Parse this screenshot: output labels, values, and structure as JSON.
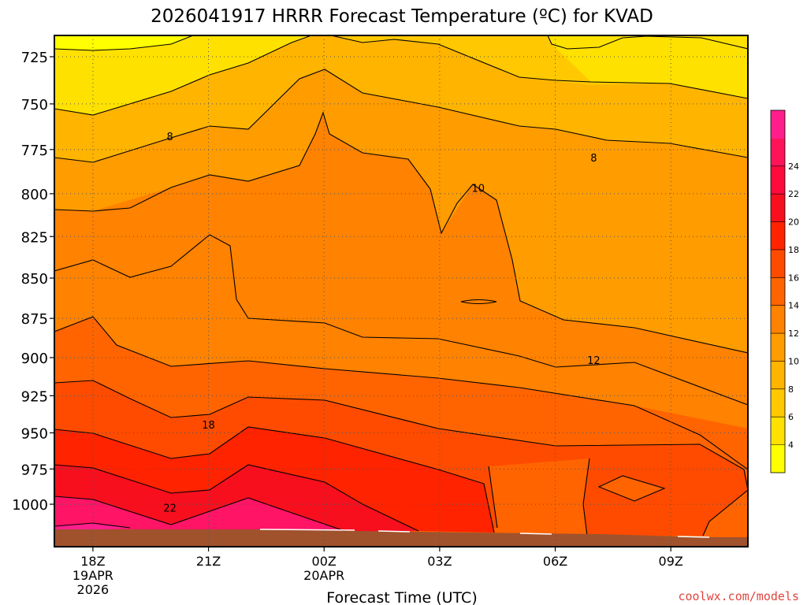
{
  "chart_data": {
    "type": "heatmap",
    "title": "2026041917 HRRR Forecast Temperature (ºC) for KVAD",
    "xlabel": "Forecast Time (UTC)",
    "ylabel": "",
    "x_ticks": [
      {
        "label": "18Z",
        "sub": [
          "19APR",
          "2026"
        ]
      },
      {
        "label": "21Z",
        "sub": []
      },
      {
        "label": "00Z",
        "sub": [
          "20APR"
        ]
      },
      {
        "label": "03Z",
        "sub": []
      },
      {
        "label": "06Z",
        "sub": []
      },
      {
        "label": "09Z",
        "sub": []
      }
    ],
    "xlim_hours": [
      -1,
      17
    ],
    "y_ticks": [
      725,
      750,
      775,
      800,
      825,
      850,
      875,
      900,
      925,
      950,
      975,
      1000
    ],
    "ylim": [
      714,
      1031
    ],
    "y_scale": "log-pressure",
    "grid": true,
    "levels": [
      2,
      4,
      6,
      8,
      10,
      12,
      14,
      16,
      18,
      20,
      22,
      24,
      26
    ],
    "colorbar": {
      "ticks": [
        4,
        6,
        8,
        10,
        12,
        14,
        16,
        18,
        20,
        22,
        24
      ],
      "colors": [
        "#ffff00",
        "#ffe100",
        "#ffc800",
        "#ffb400",
        "#ff9c00",
        "#ff8200",
        "#ff6400",
        "#ff4b00",
        "#ff2300",
        "#f70f1e",
        "#ff0a3c",
        "#ff145a",
        "#ff1e8c"
      ]
    },
    "terrain_color": "#a0522d",
    "contour_labels": [
      {
        "text": "8",
        "hour": 2.0,
        "p": 768
      },
      {
        "text": "8",
        "hour": 13.0,
        "p": 780
      },
      {
        "text": "10",
        "hour": 10.0,
        "p": 797
      },
      {
        "text": "12",
        "hour": 13.0,
        "p": 902
      },
      {
        "text": "18",
        "hour": 3.0,
        "p": 945
      },
      {
        "text": "22",
        "hour": 2.0,
        "p": 1003
      }
    ]
  },
  "credit": "coolwx.com/models",
  "credit_color": "#e2453f"
}
